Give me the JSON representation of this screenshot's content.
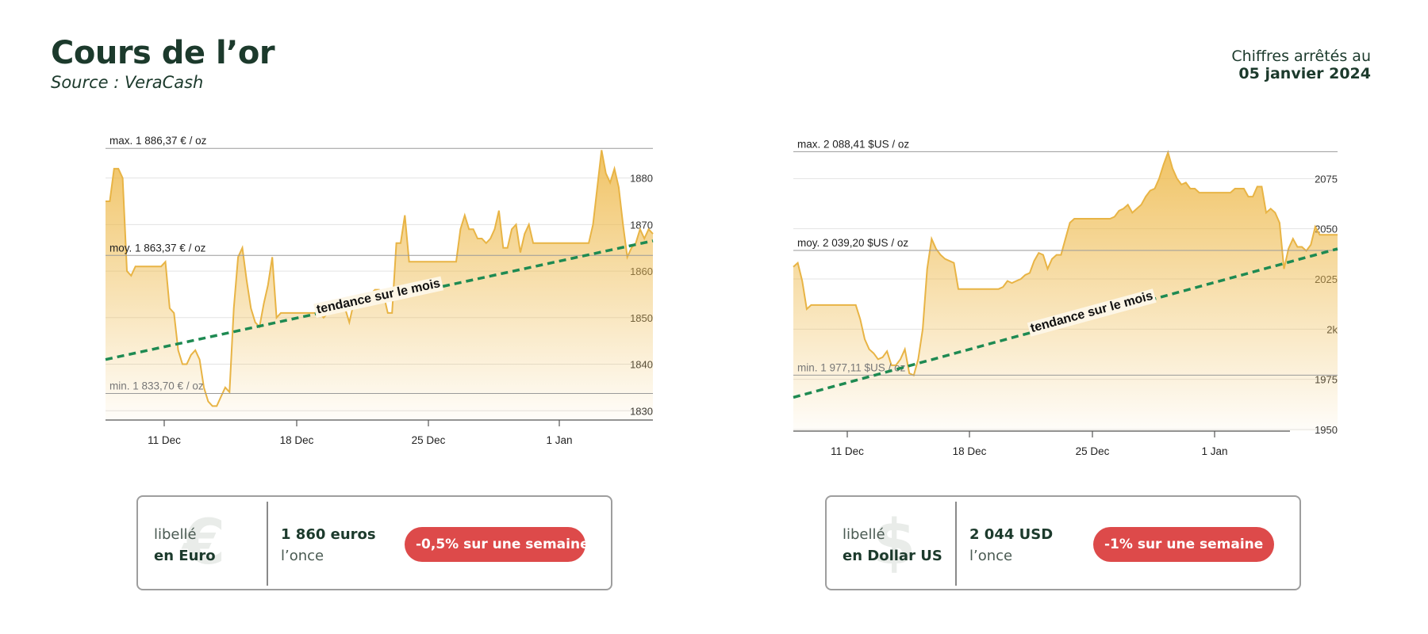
{
  "header": {
    "title": "Cours de l’or",
    "source": "Source : VeraCash",
    "date_label": "Chiffres arrêtés au",
    "date_value": "05 janvier 2024"
  },
  "colors": {
    "title": "#1c3a2c",
    "line": "#e8b445",
    "area_top": "#eeb94a",
    "trend": "#1e8a52",
    "badge": "#dd4a4a"
  },
  "chart_data": [
    {
      "type": "area",
      "currency": "EUR",
      "x_ticks": [
        "11 Dec",
        "18 Dec",
        "25 Dec",
        "1 Jan"
      ],
      "y_ticks": [
        "1830",
        "1840",
        "1850",
        "1860",
        "1870",
        "1880"
      ],
      "ylim": [
        1828,
        1891
      ],
      "annotations": {
        "max": "max. 1 886,37 € / oz",
        "avg": "moy. 1 863,37 € / oz",
        "min": "min. 1 833,70 € / oz",
        "trend": "tendance sur le mois"
      },
      "ref_values": {
        "max": 1886.37,
        "avg": 1863.37,
        "min": 1833.7
      },
      "trend_line": {
        "start": 1841,
        "end": 1866.5
      },
      "grid": true,
      "series": [
        {
          "values": [
            1875,
            1875,
            1882,
            1882,
            1880,
            1860,
            1859,
            1861,
            1861,
            1861,
            1861,
            1861,
            1861,
            1861,
            1862,
            1852,
            1851,
            1843,
            1840,
            1840,
            1842,
            1843,
            1841,
            1835,
            1832,
            1831,
            1831,
            1833,
            1835,
            1834,
            1852,
            1863,
            1865,
            1858,
            1852,
            1849,
            1848,
            1853,
            1857,
            1863,
            1850,
            1851,
            1851,
            1851,
            1851,
            1851,
            1851,
            1851,
            1851,
            1851,
            1851,
            1850,
            1851,
            1851,
            1852,
            1852,
            1852,
            1849,
            1853,
            1853,
            1853,
            1855,
            1855,
            1856,
            1856,
            1855,
            1851,
            1851,
            1866,
            1866,
            1872,
            1862,
            1862,
            1862,
            1862,
            1862,
            1862,
            1862,
            1862,
            1862,
            1862,
            1862,
            1862,
            1869,
            1872,
            1869,
            1869,
            1867,
            1867,
            1866,
            1867,
            1869,
            1873,
            1865,
            1865,
            1869,
            1870,
            1864,
            1868,
            1870,
            1866,
            1866,
            1866,
            1866,
            1866,
            1866,
            1866,
            1866,
            1866,
            1866,
            1866,
            1866,
            1866,
            1866,
            1870,
            1878,
            1886,
            1881,
            1879,
            1882,
            1878,
            1870,
            1863,
            1865,
            1866,
            1869,
            1867,
            1869,
            1868
          ]
        }
      ]
    },
    {
      "type": "area",
      "currency": "USD",
      "x_ticks": [
        "11 Dec",
        "18 Dec",
        "25 Dec",
        "1 Jan"
      ],
      "y_ticks": [
        "2075",
        "2050",
        "2025",
        "2k",
        "1975",
        "1950"
      ],
      "ylim": [
        1950,
        2100
      ],
      "annotations": {
        "max": "max. 2 088,41 $US / oz",
        "avg": "moy. 2 039,20 $US / oz",
        "min": "min. 1 977,11 $US / oz",
        "trend": "tendance sur le mois"
      },
      "ref_values": {
        "max": 2088.41,
        "avg": 2039.2,
        "min": 1977.11
      },
      "trend_line": {
        "start": 1966,
        "end": 2040
      },
      "grid": true,
      "series": [
        {
          "values": [
            2031,
            2033,
            2024,
            2010,
            2012,
            2012,
            2012,
            2012,
            2012,
            2012,
            2012,
            2012,
            2012,
            2012,
            2012,
            2005,
            1995,
            1990,
            1988,
            1985,
            1986,
            1989,
            1982,
            1982,
            1985,
            1990,
            1978,
            1977,
            1985,
            2000,
            2030,
            2045,
            2040,
            2037,
            2035,
            2034,
            2033,
            2020,
            2020,
            2020,
            2020,
            2020,
            2020,
            2020,
            2020,
            2020,
            2020,
            2021,
            2024,
            2023,
            2024,
            2025,
            2027,
            2028,
            2034,
            2038,
            2037,
            2030,
            2035,
            2037,
            2037,
            2045,
            2053,
            2055,
            2055,
            2055,
            2055,
            2055,
            2055,
            2055,
            2055,
            2055,
            2056,
            2059,
            2060,
            2062,
            2058,
            2060,
            2062,
            2066,
            2069,
            2070,
            2075,
            2082,
            2088,
            2080,
            2075,
            2072,
            2073,
            2070,
            2070,
            2068,
            2068,
            2068,
            2068,
            2068,
            2068,
            2068,
            2068,
            2070,
            2070,
            2070,
            2066,
            2066,
            2071,
            2071,
            2058,
            2060,
            2058,
            2053,
            2030,
            2040,
            2045,
            2041,
            2041,
            2039,
            2042,
            2051,
            2047,
            2047,
            2047,
            2047,
            2047
          ]
        }
      ]
    }
  ],
  "cards": [
    {
      "prefix": "libellé",
      "unit": "en Euro",
      "icon": "€",
      "price": "1 860 euros",
      "per": "l’once",
      "change": "-0,5% sur une semaine"
    },
    {
      "prefix": "libellé",
      "unit": "en Dollar US",
      "icon": "$",
      "price": "2 044  USD",
      "per": "l’once",
      "change": "-1% sur une semaine"
    }
  ]
}
